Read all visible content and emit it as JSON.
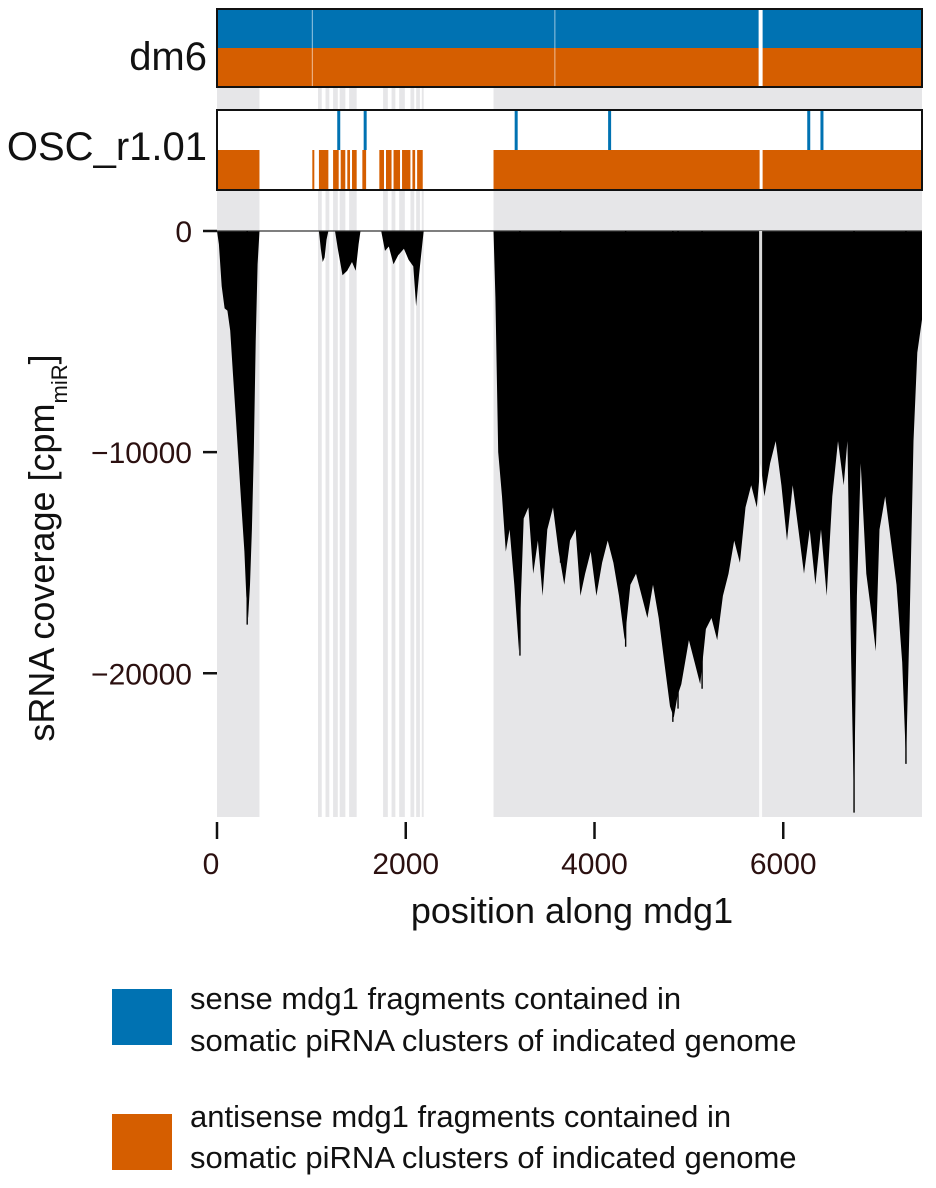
{
  "chart_data": {
    "type": "area",
    "xlabel": "position along mdg1",
    "ylabel_main": "sRNA coverage [cpm",
    "ylabel_sub": "miR",
    "ylabel_close": "]",
    "xlim": [
      0,
      7470
    ],
    "ylim": [
      -26500,
      0
    ],
    "xticks": [
      0,
      2000,
      4000,
      6000
    ],
    "xtick_labels": [
      "0",
      "2000",
      "4000",
      "6000"
    ],
    "yticks": [
      0,
      -10000,
      -20000
    ],
    "ytick_labels": [
      "0",
      "−10000",
      "−20000"
    ],
    "tracks": [
      {
        "name": "dm6",
        "sense": [
          [
            0,
            7470
          ]
        ],
        "antisense": [
          [
            0,
            7470
          ]
        ]
      },
      {
        "name": "OSC_r1.01",
        "sense_marks": [
          1290,
          1570,
          3170,
          4160,
          6270,
          6410
        ],
        "antisense": [
          [
            0,
            450
          ],
          [
            1010,
            1030
          ],
          [
            1080,
            1180
          ],
          [
            1230,
            1480
          ],
          [
            1540,
            1580
          ],
          [
            1720,
            2180
          ],
          [
            2930,
            7470
          ]
        ]
      }
    ],
    "shaded_regions": [
      [
        0,
        450
      ],
      [
        1070,
        1110
      ],
      [
        1150,
        1190
      ],
      [
        1230,
        1280
      ],
      [
        1300,
        1360
      ],
      [
        1400,
        1480
      ],
      [
        1760,
        1810
      ],
      [
        1850,
        1890
      ],
      [
        1930,
        1990
      ],
      [
        2050,
        2090
      ],
      [
        2110,
        2150
      ],
      [
        2170,
        2190
      ],
      [
        2930,
        7470
      ]
    ],
    "coverage_profile": [
      [
        0,
        0
      ],
      [
        20,
        -600
      ],
      [
        50,
        -2500
      ],
      [
        80,
        -3500
      ],
      [
        110,
        -3600
      ],
      [
        140,
        -4500
      ],
      [
        170,
        -6500
      ],
      [
        200,
        -8500
      ],
      [
        230,
        -10500
      ],
      [
        260,
        -12500
      ],
      [
        290,
        -14500
      ],
      [
        310,
        -16500
      ],
      [
        330,
        -17500
      ],
      [
        350,
        -16000
      ],
      [
        370,
        -13500
      ],
      [
        390,
        -10000
      ],
      [
        410,
        -5000
      ],
      [
        430,
        -1500
      ],
      [
        450,
        0
      ],
      [
        1080,
        0
      ],
      [
        1100,
        -800
      ],
      [
        1120,
        -1400
      ],
      [
        1140,
        -1200
      ],
      [
        1160,
        -400
      ],
      [
        1180,
        0
      ],
      [
        1250,
        0
      ],
      [
        1280,
        -800
      ],
      [
        1330,
        -2000
      ],
      [
        1380,
        -1800
      ],
      [
        1430,
        -1400
      ],
      [
        1470,
        -1800
      ],
      [
        1500,
        -600
      ],
      [
        1520,
        0
      ],
      [
        1740,
        0
      ],
      [
        1780,
        -900
      ],
      [
        1820,
        -700
      ],
      [
        1870,
        -1500
      ],
      [
        1920,
        -1100
      ],
      [
        1980,
        -800
      ],
      [
        2030,
        -1300
      ],
      [
        2080,
        -1600
      ],
      [
        2110,
        -3400
      ],
      [
        2140,
        -2000
      ],
      [
        2170,
        -800
      ],
      [
        2190,
        0
      ],
      [
        2930,
        0
      ],
      [
        2950,
        -3000
      ],
      [
        2980,
        -10000
      ],
      [
        3020,
        -12000
      ],
      [
        3060,
        -14500
      ],
      [
        3100,
        -13500
      ],
      [
        3150,
        -16000
      ],
      [
        3200,
        -19000
      ],
      [
        3250,
        -13000
      ],
      [
        3300,
        -12500
      ],
      [
        3350,
        -15500
      ],
      [
        3400,
        -14000
      ],
      [
        3450,
        -16500
      ],
      [
        3500,
        -13500
      ],
      [
        3560,
        -12500
      ],
      [
        3620,
        -14500
      ],
      [
        3680,
        -16000
      ],
      [
        3740,
        -14000
      ],
      [
        3800,
        -13500
      ],
      [
        3850,
        -16500
      ],
      [
        3900,
        -15500
      ],
      [
        3960,
        -14500
      ],
      [
        4020,
        -16500
      ],
      [
        4080,
        -15000
      ],
      [
        4140,
        -14000
      ],
      [
        4200,
        -15000
      ],
      [
        4260,
        -16500
      ],
      [
        4320,
        -18500
      ],
      [
        4380,
        -16000
      ],
      [
        4440,
        -15500
      ],
      [
        4500,
        -16500
      ],
      [
        4560,
        -17500
      ],
      [
        4620,
        -16000
      ],
      [
        4680,
        -17500
      ],
      [
        4740,
        -19500
      ],
      [
        4800,
        -21500
      ],
      [
        4840,
        -22000
      ],
      [
        4880,
        -21000
      ],
      [
        4920,
        -20500
      ],
      [
        4960,
        -19500
      ],
      [
        5000,
        -18500
      ],
      [
        5060,
        -19500
      ],
      [
        5120,
        -20500
      ],
      [
        5180,
        -18000
      ],
      [
        5240,
        -17500
      ],
      [
        5300,
        -18500
      ],
      [
        5360,
        -16500
      ],
      [
        5420,
        -15500
      ],
      [
        5480,
        -14000
      ],
      [
        5540,
        -15000
      ],
      [
        5600,
        -12500
      ],
      [
        5660,
        -11500
      ],
      [
        5720,
        -12500
      ],
      [
        5760,
        -10500
      ],
      [
        5800,
        -12000
      ],
      [
        5860,
        -10500
      ],
      [
        5920,
        -9500
      ],
      [
        5980,
        -11500
      ],
      [
        6040,
        -14000
      ],
      [
        6100,
        -11500
      ],
      [
        6160,
        -13500
      ],
      [
        6220,
        -15500
      ],
      [
        6280,
        -13500
      ],
      [
        6340,
        -16000
      ],
      [
        6400,
        -13500
      ],
      [
        6460,
        -16500
      ],
      [
        6520,
        -12000
      ],
      [
        6580,
        -9500
      ],
      [
        6640,
        -11500
      ],
      [
        6680,
        -9500
      ],
      [
        6720,
        -19500
      ],
      [
        6750,
        -26000
      ],
      [
        6780,
        -16500
      ],
      [
        6820,
        -10500
      ],
      [
        6880,
        -15500
      ],
      [
        6940,
        -17500
      ],
      [
        6980,
        -19000
      ],
      [
        7020,
        -13500
      ],
      [
        7080,
        -12000
      ],
      [
        7140,
        -14000
      ],
      [
        7200,
        -16000
      ],
      [
        7260,
        -19500
      ],
      [
        7300,
        -24000
      ],
      [
        7340,
        -17500
      ],
      [
        7380,
        -9500
      ],
      [
        7420,
        -5500
      ],
      [
        7470,
        -4000
      ]
    ],
    "spike_lines": [
      [
        320,
        -17800
      ],
      [
        3210,
        -19200
      ],
      [
        3640,
        -15000
      ],
      [
        4330,
        -18800
      ],
      [
        4830,
        -22200
      ],
      [
        4885,
        -21600
      ],
      [
        5140,
        -20700
      ],
      [
        6750,
        -26300
      ],
      [
        7300,
        -24100
      ]
    ],
    "colors": {
      "sense": "#0072b2",
      "antisense": "#d55e00",
      "shade": "#e6e6e8",
      "coverage": "#000000",
      "tick_text": "#2b1010"
    }
  },
  "legend": {
    "sense_line1": "sense mdg1 fragments contained in",
    "sense_line2": "somatic piRNA clusters of indicated genome",
    "antisense_line1": "antisense mdg1 fragments contained in",
    "antisense_line2": "somatic piRNA clusters of indicated genome"
  }
}
